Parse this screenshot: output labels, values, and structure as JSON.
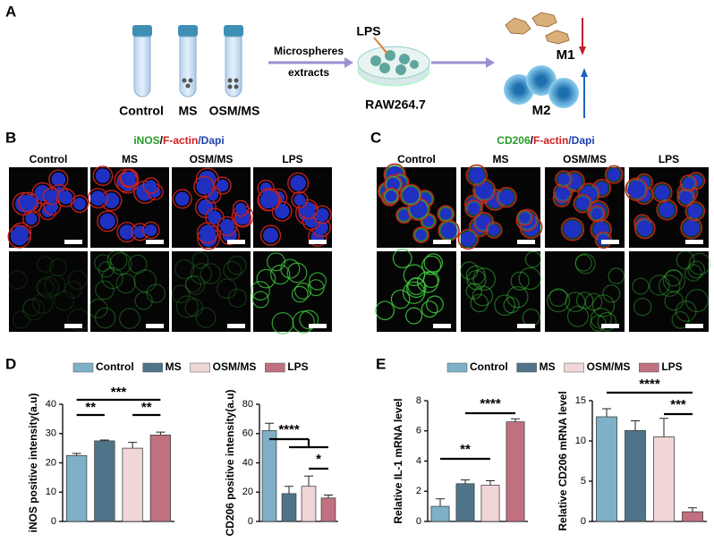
{
  "panel_labels": [
    "A",
    "B",
    "C",
    "D",
    "E"
  ],
  "panel_a": {
    "tubes": [
      "Control",
      "MS",
      "OSM/MS"
    ],
    "arrow_text": [
      "Microspheres",
      "extracts"
    ],
    "lps": "LPS",
    "cell_line": "RAW264.7",
    "m1": "M1",
    "m2": "M2"
  },
  "panel_b": {
    "stains": [
      "iNOS",
      "/",
      "F-actin",
      "/Dapi"
    ],
    "columns": [
      "Control",
      "MS",
      "OSM/MS",
      "LPS"
    ]
  },
  "panel_c": {
    "stains": [
      "CD206",
      "/",
      "F-actin",
      "/Dapi"
    ],
    "columns": [
      "Control",
      "MS",
      "OSM/MS",
      "LPS"
    ]
  },
  "legend": {
    "names": [
      "Control",
      "MS",
      "OSM/MS",
      "LPS"
    ],
    "colors": [
      "#7fb0c8",
      "#4f7489",
      "#f1d6d8",
      "#c0707f"
    ]
  },
  "chart_data": [
    {
      "type": "bar",
      "ylabel": "iNOS positive intensity(a.u)",
      "values": [
        22.5,
        27.5,
        25,
        29.5
      ],
      "errors": [
        0.7,
        0.3,
        2,
        1
      ],
      "ylim": [
        0,
        40
      ],
      "yticks": [
        0,
        10,
        20,
        30,
        40
      ],
      "significance": [
        "***",
        "**",
        "**"
      ]
    },
    {
      "type": "bar",
      "ylabel": "CD206 positive intensity(a.u)",
      "values": [
        62,
        19,
        24,
        16
      ],
      "errors": [
        5,
        5,
        7,
        2
      ],
      "ylim": [
        0,
        80
      ],
      "yticks": [
        0,
        20,
        40,
        60,
        80
      ],
      "significance": [
        "****",
        "*"
      ]
    },
    {
      "type": "bar",
      "ylabel": "Relative IL-1 mRNA level",
      "values": [
        1.0,
        2.5,
        2.4,
        6.6
      ],
      "errors": [
        0.5,
        0.25,
        0.3,
        0.2
      ],
      "ylim": [
        0,
        8
      ],
      "yticks": [
        0,
        2,
        4,
        6,
        8
      ],
      "significance": [
        "**",
        "****"
      ]
    },
    {
      "type": "bar",
      "ylabel": "Relative CD206 mRNA level",
      "values": [
        13,
        11.3,
        10.5,
        1.2
      ],
      "errors": [
        1,
        1.2,
        2.3,
        0.5
      ],
      "ylim": [
        0,
        15
      ],
      "yticks": [
        0,
        5,
        10,
        15
      ],
      "significance": [
        "****",
        "***"
      ]
    }
  ]
}
